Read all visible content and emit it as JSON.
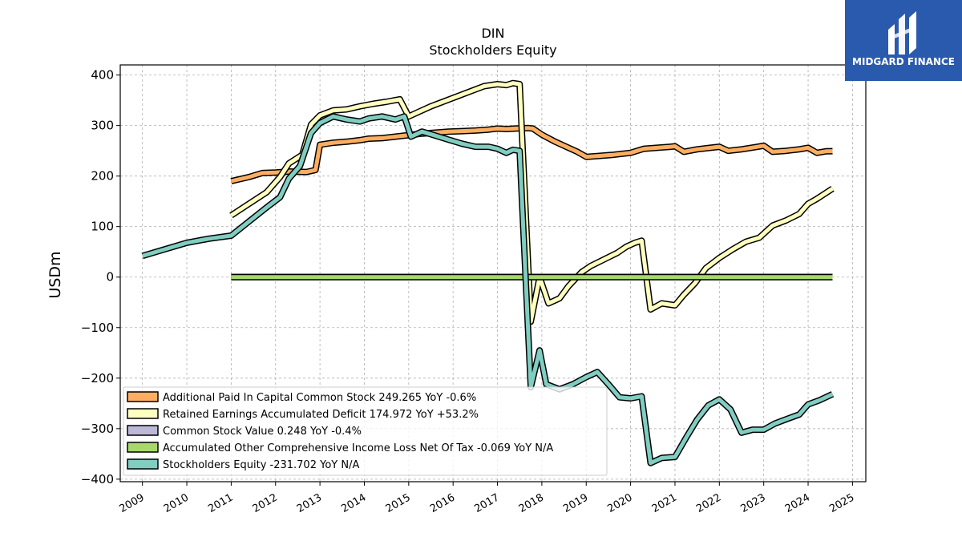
{
  "logo": {
    "text": "MIDGARD FINANCE",
    "background": "#2a5aad"
  },
  "chart_data": {
    "type": "line",
    "title": "DIN",
    "subtitle": "Stockholders  Equity",
    "xlabel": "",
    "ylabel": "USDm",
    "xlim": [
      2008.5,
      2025.3
    ],
    "ylim": [
      -405,
      420
    ],
    "yticks": [
      400,
      300,
      200,
      100,
      0,
      -100,
      -200,
      -300,
      -400
    ],
    "ytick_labels": [
      "400",
      "300",
      "200",
      "100",
      "0",
      "−100",
      "−200",
      "−300",
      "−400"
    ],
    "xticks": [
      2009,
      2010,
      2011,
      2012,
      2013,
      2014,
      2015,
      2016,
      2017,
      2018,
      2019,
      2020,
      2021,
      2022,
      2023,
      2024,
      2025
    ],
    "xtick_labels": [
      "2009",
      "2010",
      "2011",
      "2012",
      "2013",
      "2014",
      "2015",
      "2016",
      "2017",
      "2018",
      "2019",
      "2020",
      "2021",
      "2022",
      "2023",
      "2024",
      "2025"
    ],
    "grid": true,
    "legend_position": "lower-left",
    "series": [
      {
        "name": "Additional Paid In Capital Common Stock  249.265 YoY -0.6%",
        "color": "#fdae61",
        "points": [
          [
            2011.0,
            190
          ],
          [
            2011.4,
            198
          ],
          [
            2011.7,
            206
          ],
          [
            2012.0,
            207
          ],
          [
            2012.3,
            209
          ],
          [
            2012.7,
            208
          ],
          [
            2012.9,
            212
          ],
          [
            2013.0,
            262
          ],
          [
            2013.3,
            266
          ],
          [
            2013.6,
            268
          ],
          [
            2013.9,
            271
          ],
          [
            2014.1,
            274
          ],
          [
            2014.4,
            275
          ],
          [
            2014.7,
            278
          ],
          [
            2015.0,
            281
          ],
          [
            2015.3,
            284
          ],
          [
            2015.6,
            286
          ],
          [
            2015.9,
            288
          ],
          [
            2016.2,
            289
          ],
          [
            2016.5,
            290
          ],
          [
            2016.8,
            292
          ],
          [
            2017.0,
            294
          ],
          [
            2017.2,
            293
          ],
          [
            2017.4,
            294
          ],
          [
            2017.7,
            295
          ],
          [
            2017.8,
            294
          ],
          [
            2018.0,
            282
          ],
          [
            2018.3,
            268
          ],
          [
            2018.6,
            256
          ],
          [
            2018.8,
            248
          ],
          [
            2019.0,
            238
          ],
          [
            2019.3,
            240
          ],
          [
            2019.6,
            242
          ],
          [
            2020.0,
            246
          ],
          [
            2020.3,
            254
          ],
          [
            2020.6,
            256
          ],
          [
            2020.9,
            258
          ],
          [
            2021.0,
            259
          ],
          [
            2021.2,
            248
          ],
          [
            2021.5,
            253
          ],
          [
            2021.8,
            256
          ],
          [
            2022.0,
            258
          ],
          [
            2022.2,
            250
          ],
          [
            2022.5,
            253
          ],
          [
            2022.8,
            257
          ],
          [
            2023.0,
            260
          ],
          [
            2023.2,
            248
          ],
          [
            2023.5,
            250
          ],
          [
            2023.8,
            253
          ],
          [
            2024.0,
            256
          ],
          [
            2024.2,
            246
          ],
          [
            2024.4,
            249
          ],
          [
            2024.55,
            249.265
          ]
        ]
      },
      {
        "name": "Retained Earnings Accumulated Deficit  174.972 YoY +53.2%",
        "color": "#ffffbf",
        "points": [
          [
            2011.0,
            122
          ],
          [
            2011.4,
            145
          ],
          [
            2011.8,
            168
          ],
          [
            2012.1,
            198
          ],
          [
            2012.3,
            225
          ],
          [
            2012.6,
            242
          ],
          [
            2012.8,
            302
          ],
          [
            2013.0,
            320
          ],
          [
            2013.3,
            330
          ],
          [
            2013.6,
            332
          ],
          [
            2013.9,
            338
          ],
          [
            2014.2,
            343
          ],
          [
            2014.5,
            347
          ],
          [
            2014.8,
            352
          ],
          [
            2015.0,
            318
          ],
          [
            2015.2,
            326
          ],
          [
            2015.5,
            338
          ],
          [
            2015.8,
            348
          ],
          [
            2016.1,
            358
          ],
          [
            2016.4,
            368
          ],
          [
            2016.7,
            378
          ],
          [
            2017.0,
            382
          ],
          [
            2017.2,
            380
          ],
          [
            2017.35,
            384
          ],
          [
            2017.5,
            382
          ],
          [
            2017.75,
            -88
          ],
          [
            2017.95,
            0
          ],
          [
            2018.15,
            -52
          ],
          [
            2018.4,
            -42
          ],
          [
            2018.6,
            -18
          ],
          [
            2018.9,
            10
          ],
          [
            2019.1,
            22
          ],
          [
            2019.4,
            35
          ],
          [
            2019.7,
            48
          ],
          [
            2019.9,
            60
          ],
          [
            2020.1,
            68
          ],
          [
            2020.25,
            72
          ],
          [
            2020.45,
            -64
          ],
          [
            2020.7,
            -52
          ],
          [
            2021.0,
            -56
          ],
          [
            2021.2,
            -35
          ],
          [
            2021.45,
            -12
          ],
          [
            2021.7,
            18
          ],
          [
            2022.0,
            38
          ],
          [
            2022.3,
            55
          ],
          [
            2022.6,
            70
          ],
          [
            2022.9,
            78
          ],
          [
            2023.0,
            86
          ],
          [
            2023.2,
            102
          ],
          [
            2023.5,
            112
          ],
          [
            2023.8,
            125
          ],
          [
            2024.0,
            145
          ],
          [
            2024.2,
            155
          ],
          [
            2024.55,
            174.972
          ]
        ]
      },
      {
        "name": "Common Stock Value  0.248 YoY -0.4%",
        "color": "#bcb8d8",
        "points": [
          [
            2011.0,
            0.25
          ],
          [
            2024.55,
            0.248
          ]
        ]
      },
      {
        "name": "Accumulated Other Comprehensive Income Loss Net Of Tax  -0.069 YoY N/A",
        "color": "#a6d96a",
        "points": [
          [
            2011.0,
            0
          ],
          [
            2024.55,
            -0.069
          ]
        ]
      },
      {
        "name": "Stockholders Equity  -231.702 YoY N/A",
        "color": "#80cdc1",
        "points": [
          [
            2009.0,
            42
          ],
          [
            2009.5,
            55
          ],
          [
            2010.0,
            68
          ],
          [
            2010.5,
            76
          ],
          [
            2011.0,
            82
          ],
          [
            2011.4,
            110
          ],
          [
            2011.8,
            138
          ],
          [
            2012.1,
            158
          ],
          [
            2012.3,
            195
          ],
          [
            2012.55,
            220
          ],
          [
            2012.8,
            285
          ],
          [
            2013.0,
            305
          ],
          [
            2013.3,
            318
          ],
          [
            2013.6,
            312
          ],
          [
            2013.9,
            308
          ],
          [
            2014.1,
            314
          ],
          [
            2014.4,
            318
          ],
          [
            2014.7,
            312
          ],
          [
            2014.9,
            318
          ],
          [
            2015.05,
            278
          ],
          [
            2015.3,
            288
          ],
          [
            2015.6,
            280
          ],
          [
            2015.9,
            272
          ],
          [
            2016.2,
            264
          ],
          [
            2016.5,
            258
          ],
          [
            2016.8,
            258
          ],
          [
            2017.0,
            254
          ],
          [
            2017.2,
            246
          ],
          [
            2017.35,
            252
          ],
          [
            2017.5,
            250
          ],
          [
            2017.75,
            -218
          ],
          [
            2017.95,
            -145
          ],
          [
            2018.1,
            -212
          ],
          [
            2018.4,
            -222
          ],
          [
            2018.7,
            -212
          ],
          [
            2019.0,
            -198
          ],
          [
            2019.25,
            -188
          ],
          [
            2019.5,
            -212
          ],
          [
            2019.75,
            -238
          ],
          [
            2020.0,
            -240
          ],
          [
            2020.25,
            -236
          ],
          [
            2020.45,
            -368
          ],
          [
            2020.7,
            -358
          ],
          [
            2021.0,
            -356
          ],
          [
            2021.25,
            -318
          ],
          [
            2021.5,
            -282
          ],
          [
            2021.75,
            -254
          ],
          [
            2022.0,
            -242
          ],
          [
            2022.25,
            -262
          ],
          [
            2022.5,
            -308
          ],
          [
            2022.75,
            -302
          ],
          [
            2023.0,
            -302
          ],
          [
            2023.25,
            -290
          ],
          [
            2023.55,
            -280
          ],
          [
            2023.8,
            -272
          ],
          [
            2024.0,
            -252
          ],
          [
            2024.25,
            -244
          ],
          [
            2024.55,
            -231.702
          ]
        ]
      }
    ]
  }
}
